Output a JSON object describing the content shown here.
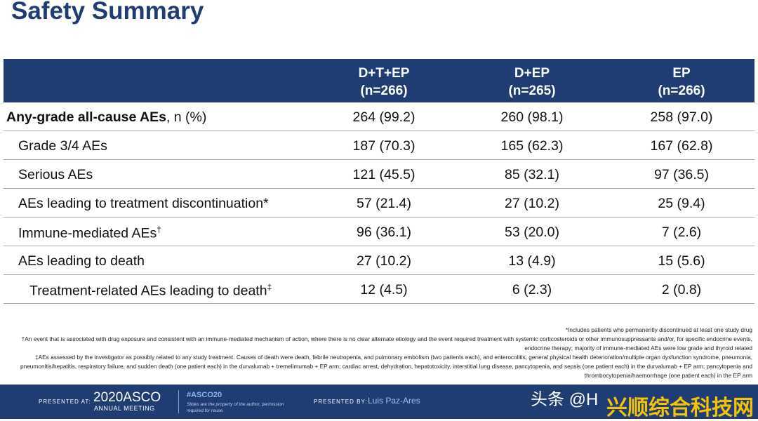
{
  "title": "Safety Summary",
  "columns": [
    {
      "line1": "D+T+EP",
      "line2": "(n=266)"
    },
    {
      "line1": "D+EP",
      "line2": "(n=265)"
    },
    {
      "line1": "EP",
      "line2": "(n=266)"
    }
  ],
  "rows": [
    {
      "label_bold": "Any-grade all-cause AEs",
      "label_rest": ", n (%)",
      "values": [
        "264 (99.2)",
        "260 (98.1)",
        "258 (97.0)"
      ]
    },
    {
      "label": "Grade 3/4 AEs",
      "values": [
        "187 (70.3)",
        "165 (62.3)",
        "167 (62.8)"
      ]
    },
    {
      "label": "Serious AEs",
      "values": [
        "121 (45.5)",
        "85 (32.1)",
        "97 (36.5)"
      ]
    },
    {
      "label": "AEs leading to treatment discontinuation*",
      "values": [
        "57 (21.4)",
        "27 (10.2)",
        "25 (9.4)"
      ]
    },
    {
      "label": "Immune-mediated AEs",
      "sup": "†",
      "values": [
        "96 (36.1)",
        "53 (20.0)",
        "7 (2.6)"
      ]
    },
    {
      "label": "AEs leading to death",
      "values": [
        "27 (10.2)",
        "13 (4.9)",
        "15 (5.6)"
      ]
    },
    {
      "label": "Treatment-related AEs leading to death",
      "sup": "‡",
      "values": [
        "12 (4.5)",
        "6 (2.3)",
        "2 (0.8)"
      ]
    }
  ],
  "footnotes": [
    "*Includes patients who permanently discontinued at least one study drug",
    "†An event that is associated with drug exposure and consistent with an immune-mediated mechanism of action, where there is no clear alternate etiology and the event required treatment with systemic corticosteroids or other immunosuppressants and/or, for specific endocrine events, endocrine therapy; majority of immune-mediated AEs were low grade and thyroid related",
    "‡AEs assessed by the investigator as possibly related to any study treatment. Causes of death were death, febrile neutropenia, and pulmonary embolism (two patients each), and enterocolitis, general physical health deterioration/multiple organ dysfunction syndrome, pneumonia, pneumonitis/hepatitis, respiratory failure, and sudden death (one patient each) in the durvalumab + tremelimumab + EP arm; cardiac arrest, dehydration, hepatotoxicity, interstitial lung disease, pancytopenia, and sepsis (one patient each) in the durvalumab + EP arm; pancytopenia and thrombocytopenia/haemorrhage (one patient each) in the EP arm"
  ],
  "footer": {
    "presented_at": "PRESENTED AT:",
    "logo": "2020ASCO",
    "logo_sub": "ANNUAL MEETING",
    "hashtag": "#ASCO20",
    "note": "Slides are the property of the author, permission required for reuse.",
    "presented_by": "PRESENTED BY:",
    "presenter": "Luis Paz-Ares"
  },
  "watermark": {
    "text1": "头条 @H",
    "text2": "兴顺综合科技网"
  },
  "colors": {
    "header_bg": "#1f3c73",
    "title": "#1f3c73",
    "row_border": "#a9a9a9"
  }
}
